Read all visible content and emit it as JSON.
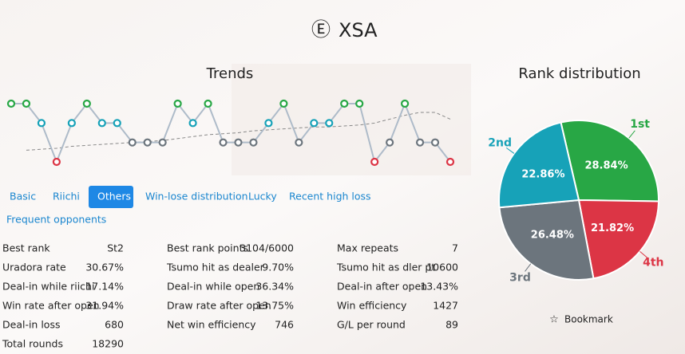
{
  "header": {
    "icon": "Ⓔ",
    "title": "XSA"
  },
  "chart_data": [
    {
      "type": "line",
      "title": "Trends",
      "ylim": [
        4,
        1
      ],
      "rank_colors": [
        "#28a745",
        "#17a2b8",
        "#6c757d",
        "#dc3545"
      ],
      "series": [
        {
          "color": "#aebbc9",
          "values": [
            1,
            1,
            2,
            4,
            2,
            1,
            2,
            2,
            3,
            3,
            3,
            1,
            2,
            1,
            3,
            3,
            3,
            2,
            1,
            3,
            2,
            2,
            1,
            1,
            4,
            3,
            1,
            3,
            3,
            4
          ]
        },
        {
          "color": "#888888",
          "dashed": true,
          "values": [
            null,
            3.4,
            3.35,
            3.3,
            3.2,
            3.15,
            3.1,
            3.05,
            3.0,
            2.95,
            2.9,
            2.8,
            2.7,
            2.6,
            2.55,
            2.5,
            2.4,
            2.35,
            2.3,
            2.25,
            2.2,
            2.2,
            2.15,
            2.1,
            2.0,
            1.8,
            1.6,
            1.45,
            1.45,
            1.8
          ]
        }
      ]
    },
    {
      "type": "pie",
      "title": "Rank distribution",
      "start_angle": -13,
      "categories": [
        "1st",
        "4th",
        "3rd",
        "2nd"
      ],
      "values": [
        28.84,
        21.82,
        26.48,
        22.86
      ],
      "value_labels": [
        "28.84%",
        "21.82%",
        "26.48%",
        "22.86%"
      ],
      "colors": [
        "#28a745",
        "#dc3545",
        "#6c757d",
        "#17a2b8"
      ]
    }
  ],
  "tabs": {
    "active": 2,
    "items": [
      "Basic",
      "Riichi",
      "Others",
      "Win-lose distribution",
      "Lucky",
      "Recent high loss",
      "Frequent opponents"
    ]
  },
  "stats": [
    [
      [
        "Best rank",
        "St2"
      ],
      [
        "Uradora rate",
        "30.67%"
      ],
      [
        "Deal-in while riichi",
        "17.14%"
      ],
      [
        "Win rate after open",
        "31.94%"
      ],
      [
        "Deal-in loss",
        "680"
      ],
      [
        "Total rounds",
        "18290"
      ]
    ],
    [
      [
        "Best rank points",
        "3104/6000"
      ],
      [
        "Tsumo hit as dealer",
        "9.70%"
      ],
      [
        "Deal-in while open",
        "36.34%"
      ],
      [
        "Draw rate after open",
        "13.75%"
      ],
      [
        "Net win efficiency",
        "746"
      ]
    ],
    [
      [
        "Max repeats",
        "7"
      ],
      [
        "Tsumo hit as dler pt",
        "10600"
      ],
      [
        "Deal-in after open",
        "13.43%"
      ],
      [
        "Win efficiency",
        "1427"
      ],
      [
        "G/L per round",
        "89"
      ]
    ]
  ],
  "bookmark": "Bookmark"
}
